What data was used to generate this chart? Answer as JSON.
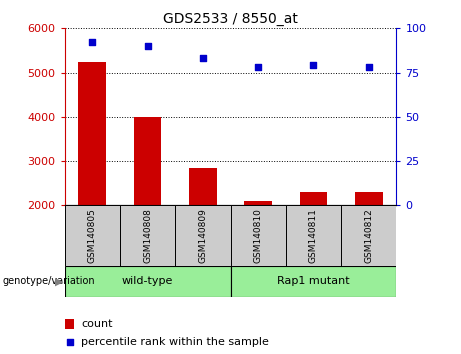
{
  "title": "GDS2533 / 8550_at",
  "categories": [
    "GSM140805",
    "GSM140808",
    "GSM140809",
    "GSM140810",
    "GSM140811",
    "GSM140812"
  ],
  "bar_values": [
    5250,
    4000,
    2850,
    2100,
    2300,
    2300
  ],
  "scatter_values": [
    92,
    90,
    83,
    78,
    79,
    78
  ],
  "ylim_left": [
    2000,
    6000
  ],
  "ylim_right": [
    0,
    100
  ],
  "yticks_left": [
    2000,
    3000,
    4000,
    5000,
    6000
  ],
  "yticks_right": [
    0,
    25,
    50,
    75,
    100
  ],
  "bar_color": "#cc0000",
  "scatter_color": "#0000cc",
  "group_labels": [
    "wild-type",
    "Rap1 mutant"
  ],
  "group_color": "#99ee99",
  "annotation_label": "genotype/variation",
  "legend_count_label": "count",
  "legend_percentile_label": "percentile rank within the sample",
  "xlabel_area_color": "#cccccc",
  "xlabel_border_color": "#000000"
}
